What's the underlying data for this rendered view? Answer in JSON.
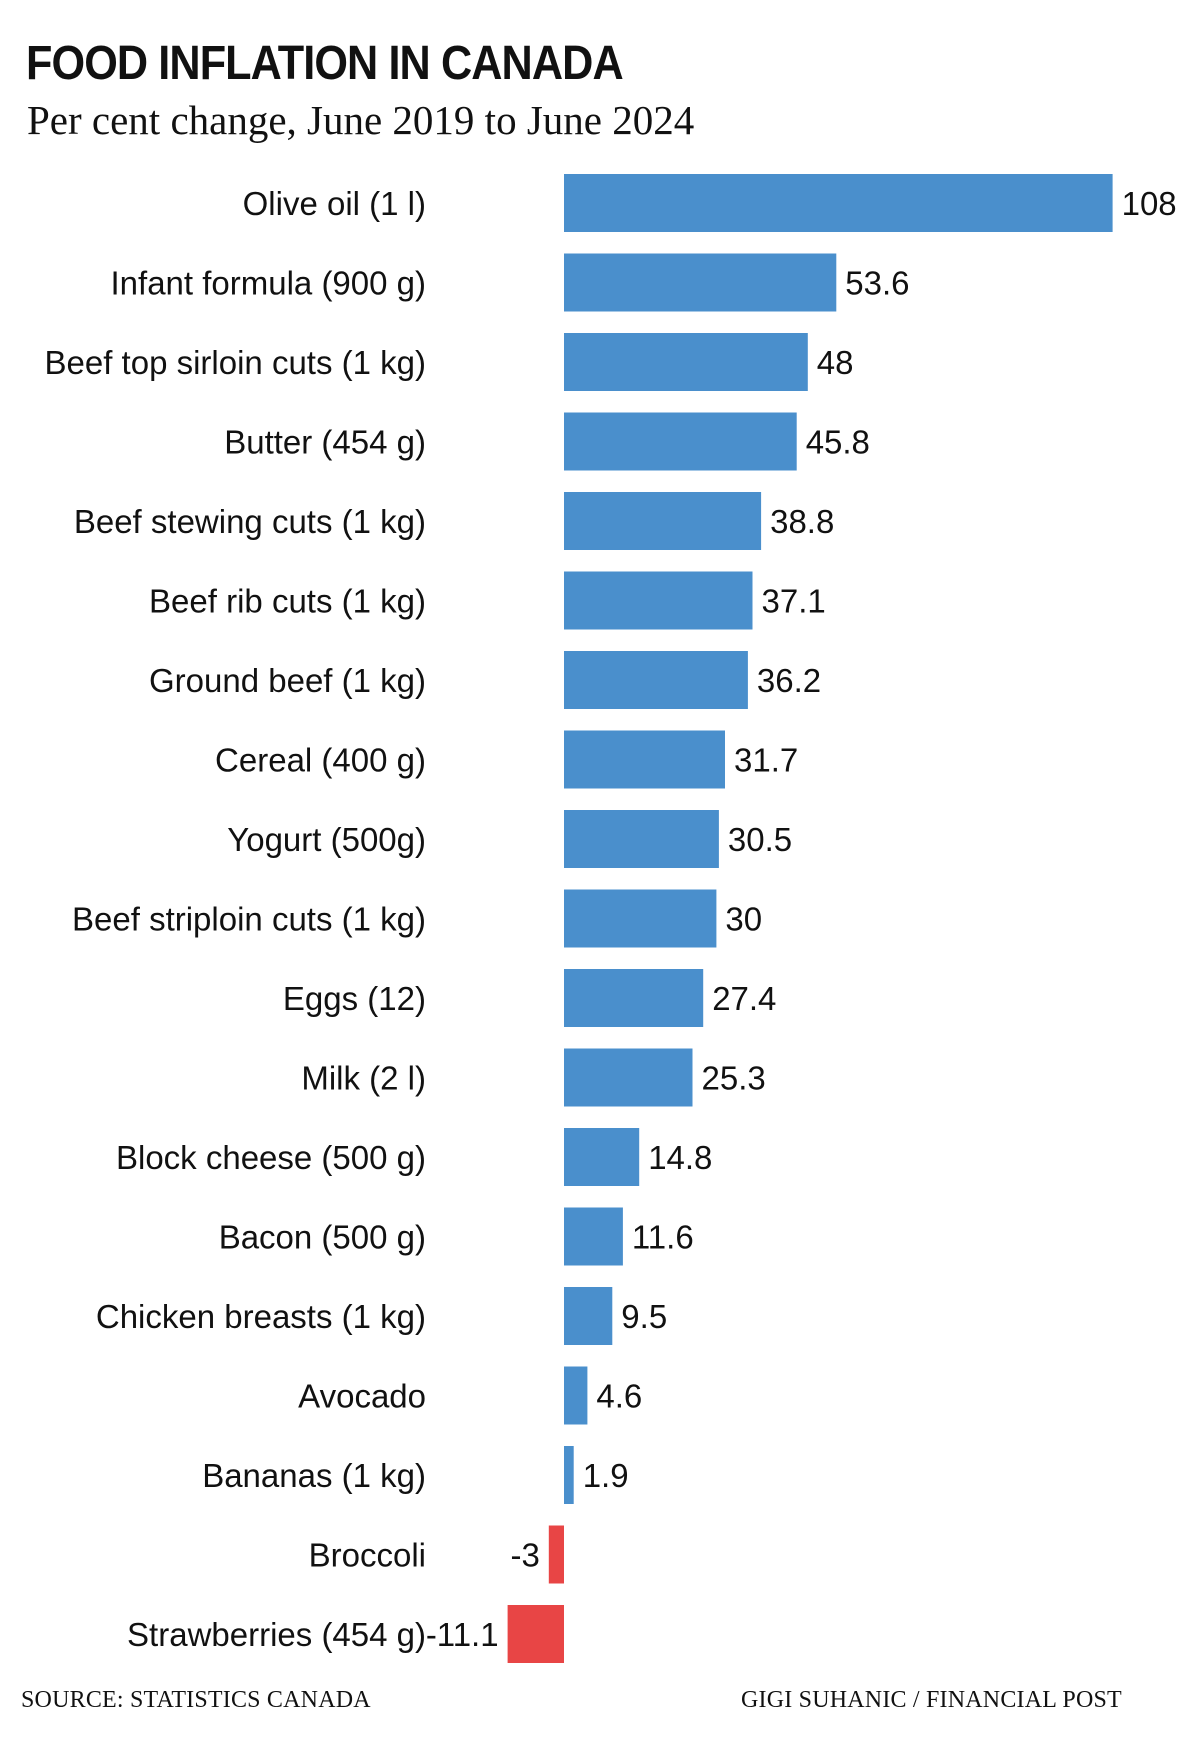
{
  "title": "FOOD INFLATION IN CANADA",
  "subtitle": "Per cent change, June 2019 to June 2024",
  "source": "SOURCE: STATISTICS CANADA",
  "credit": "GIGI SUHANIC / FINANCIAL POST",
  "colors": {
    "positive": "#4a8fcc",
    "negative": "#e84545",
    "text": "#111111"
  },
  "chart_data": {
    "type": "bar",
    "orientation": "horizontal",
    "title": "FOOD INFLATION IN CANADA",
    "subtitle": "Per cent change, June 2019 to June 2024",
    "xlabel": "",
    "ylabel": "",
    "grid": false,
    "legend": "none",
    "xlim": [
      -11.1,
      108
    ],
    "categories": [
      "Olive oil (1 l)",
      "Infant formula (900 g)",
      "Beef top sirloin cuts (1 kg)",
      "Butter (454 g)",
      "Beef stewing cuts (1 kg)",
      "Beef rib cuts (1 kg)",
      "Ground beef (1 kg)",
      "Cereal (400 g)",
      "Yogurt (500g)",
      "Beef striploin cuts (1 kg)",
      "Eggs (12)",
      "Milk (2 l)",
      "Block cheese (500 g)",
      "Bacon (500 g)",
      "Chicken breasts (1 kg)",
      "Avocado",
      "Bananas (1 kg)",
      "Broccoli",
      "Strawberries (454 g)"
    ],
    "values": [
      108,
      53.6,
      48,
      45.8,
      38.8,
      37.1,
      36.2,
      31.7,
      30.5,
      30,
      27.4,
      25.3,
      14.8,
      11.6,
      9.5,
      4.6,
      1.9,
      -3,
      -11.1
    ],
    "value_labels": [
      "108",
      "53.6",
      "48",
      "45.8",
      "38.8",
      "37.1",
      "36.2",
      "31.7",
      "30.5",
      "30",
      "27.4",
      "25.3",
      "14.8",
      "11.6",
      "9.5",
      "4.6",
      "1.9",
      "-3",
      "-11.1"
    ]
  }
}
